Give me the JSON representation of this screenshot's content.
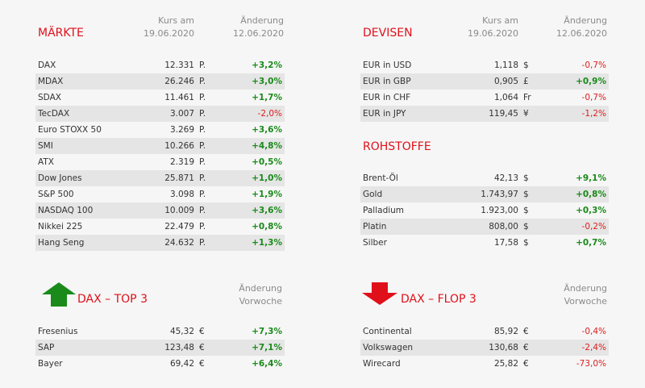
{
  "colors": {
    "red": "#e0101a",
    "green": "#1a8a1a",
    "negative": "#dc1e1e",
    "stripe": "#e5e5e5"
  },
  "maerkte": {
    "title": "MÄRKTE",
    "col1": [
      "Kurs am",
      "19.06.2020"
    ],
    "col2": [
      "Änderung",
      "12.06.2020"
    ],
    "rows": [
      {
        "name": "DAX",
        "value": "12.331",
        "unit": "P.",
        "change": "+3,2%"
      },
      {
        "name": "MDAX",
        "value": "26.246",
        "unit": "P.",
        "change": "+3,0%"
      },
      {
        "name": "SDAX",
        "value": "11.461",
        "unit": "P.",
        "change": "+1,7%"
      },
      {
        "name": "TecDAX",
        "value": "3.007",
        "unit": "P.",
        "change": "-2,0%"
      },
      {
        "name": "Euro STOXX 50",
        "value": "3.269",
        "unit": "P.",
        "change": "+3,6%"
      },
      {
        "name": "SMI",
        "value": "10.266",
        "unit": "P.",
        "change": "+4,8%"
      },
      {
        "name": "ATX",
        "value": "2.319",
        "unit": "P.",
        "change": "+0,5%"
      },
      {
        "name": "Dow Jones",
        "value": "25.871",
        "unit": "P.",
        "change": "+1,0%"
      },
      {
        "name": "S&P 500",
        "value": "3.098",
        "unit": "P.",
        "change": "+1,9%"
      },
      {
        "name": "NASDAQ 100",
        "value": "10.009",
        "unit": "P.",
        "change": "+3,6%"
      },
      {
        "name": "Nikkei 225",
        "value": "22.479",
        "unit": "P.",
        "change": "+0,8%"
      },
      {
        "name": "Hang Seng",
        "value": "24.632",
        "unit": "P.",
        "change": "+1,3%"
      }
    ]
  },
  "devisen": {
    "title": "DEVISEN",
    "col1": [
      "Kurs am",
      "19.06.2020"
    ],
    "col2": [
      "Änderung",
      "12.06.2020"
    ],
    "rows": [
      {
        "name": "EUR in USD",
        "value": "1,118",
        "unit": "$",
        "change": "-0,7%"
      },
      {
        "name": "EUR in GBP",
        "value": "0,905",
        "unit": "£",
        "change": "+0,9%"
      },
      {
        "name": "EUR in CHF",
        "value": "1,064",
        "unit": "Fr",
        "change": "-0,7%"
      },
      {
        "name": "EUR in JPY",
        "value": "119,45",
        "unit": "¥",
        "change": "-1,2%"
      }
    ]
  },
  "rohstoffe": {
    "title": "ROHSTOFFE",
    "rows": [
      {
        "name": "Brent-Öl",
        "value": "42,13",
        "unit": "$",
        "change": "+9,1%"
      },
      {
        "name": "Gold",
        "value": "1.743,97",
        "unit": "$",
        "change": "+0,8%"
      },
      {
        "name": "Palladium",
        "value": "1.923,00",
        "unit": "$",
        "change": "+0,3%"
      },
      {
        "name": "Platin",
        "value": "808,00",
        "unit": "$",
        "change": "-0,2%"
      },
      {
        "name": "Silber",
        "value": "17,58",
        "unit": "$",
        "change": "+0,7%"
      }
    ]
  },
  "top3": {
    "title": "DAX – TOP 3",
    "icon": "arrow-up-icon",
    "col2": [
      "Änderung",
      "Vorwoche"
    ],
    "rows": [
      {
        "name": "Fresenius",
        "value": "45,32",
        "unit": "€",
        "change": "+7,3%"
      },
      {
        "name": "SAP",
        "value": "123,48",
        "unit": "€",
        "change": "+7,1%"
      },
      {
        "name": "Bayer",
        "value": "69,42",
        "unit": "€",
        "change": "+6,4%"
      }
    ]
  },
  "flop3": {
    "title": "DAX – FLOP 3",
    "icon": "arrow-down-icon",
    "col2": [
      "Änderung",
      "Vorwoche"
    ],
    "rows": [
      {
        "name": "Continental",
        "value": "85,92",
        "unit": "€",
        "change": "-0,4%"
      },
      {
        "name": "Volkswagen",
        "value": "130,68",
        "unit": "€",
        "change": "-2,4%"
      },
      {
        "name": "Wirecard",
        "value": "25,82",
        "unit": "€",
        "change": "-73,0%"
      }
    ]
  }
}
